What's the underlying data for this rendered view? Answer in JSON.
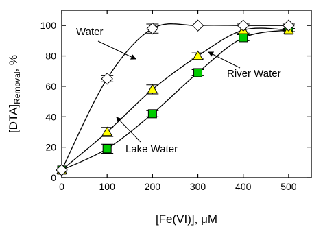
{
  "chart_data": {
    "type": "line",
    "xlabel": "[Fe(VI)], μM",
    "ylabel_main": "[DTA]",
    "ylabel_sub": "Removal",
    "ylabel_suffix": ", %",
    "xlim": [
      0,
      550
    ],
    "ylim": [
      0,
      110
    ],
    "xticks": [
      0,
      100,
      200,
      300,
      400,
      500
    ],
    "yticks": [
      0,
      20,
      40,
      60,
      80,
      100
    ],
    "grid": false,
    "series": [
      {
        "name": "Water",
        "marker": "diamond",
        "color": "#ffffff",
        "x": [
          0,
          100,
          200,
          300,
          400,
          500
        ],
        "y": [
          5,
          65,
          98,
          100,
          100,
          100
        ],
        "err": [
          0,
          2,
          3,
          0,
          1,
          1
        ]
      },
      {
        "name": "River Water",
        "marker": "triangle",
        "color": "#ffff00",
        "x": [
          0,
          100,
          200,
          300,
          400,
          500
        ],
        "y": [
          5,
          30,
          58,
          80,
          97,
          97
        ],
        "err": [
          0,
          3,
          3,
          2,
          2,
          1
        ]
      },
      {
        "name": "Lake Water",
        "marker": "square",
        "color": "#00cc00",
        "x": [
          0,
          100,
          200,
          300,
          400,
          500
        ],
        "y": [
          5,
          19,
          42,
          69,
          92,
          97
        ],
        "err": [
          0,
          3,
          2,
          2,
          2,
          1
        ]
      }
    ],
    "annotations": [
      {
        "text": "Water"
      },
      {
        "text": "River Water"
      },
      {
        "text": "Lake Water"
      }
    ]
  }
}
